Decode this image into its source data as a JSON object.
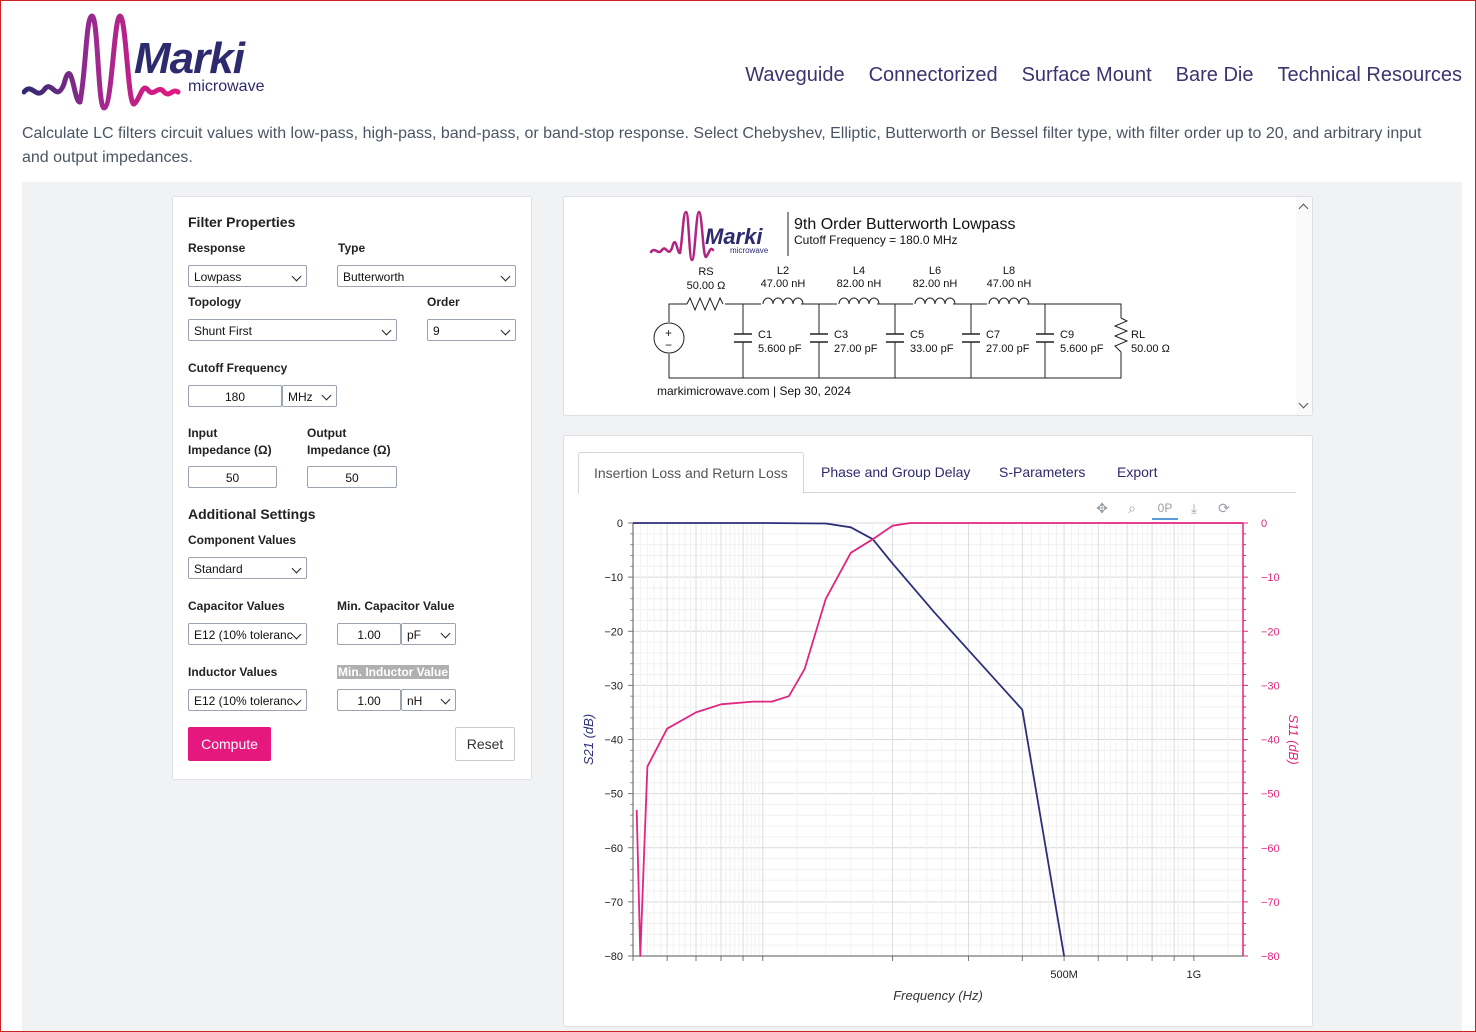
{
  "header": {
    "logo_text": "Marki",
    "logo_sub": "microwave",
    "nav": [
      "Waveguide",
      "Connectorized",
      "Surface Mount",
      "Bare Die",
      "Technical Resources"
    ]
  },
  "intro": "Calculate LC filters circuit values with low-pass, high-pass, band-pass, or band-stop response. Select Chebyshev, Elliptic, Butterworth or Bessel filter type, with filter order up to 20, and arbitrary input and output impedances.",
  "filter": {
    "section_title": "Filter Properties",
    "response_label": "Response",
    "response_value": "Lowpass",
    "type_label": "Type",
    "type_value": "Butterworth",
    "topology_label": "Topology",
    "topology_value": "Shunt First",
    "order_label": "Order",
    "order_value": "9",
    "cutoff_label": "Cutoff Frequency",
    "cutoff_value": "180",
    "cutoff_unit": "MHz",
    "input_label_1": "Input",
    "input_label_2": "Impedance (Ω)",
    "input_value": "50",
    "output_label_1": "Output",
    "output_label_2": "Impedance (Ω)",
    "output_value": "50"
  },
  "additional": {
    "section_title": "Additional Settings",
    "component_label": "Component Values",
    "component_value": "Standard",
    "cap_label": "Capacitor Values",
    "cap_value": "E12 (10% toleranc",
    "min_cap_label": "Min. Capacitor Value",
    "min_cap_value": "1.00",
    "min_cap_unit": "pF",
    "ind_label": "Inductor Values",
    "ind_value": "E12 (10% toleranc",
    "min_ind_label": "Min. Inductor Value",
    "min_ind_value": "1.00",
    "min_ind_unit": "nH",
    "compute": "Compute",
    "reset": "Reset"
  },
  "schematic": {
    "logo_text": "Marki",
    "logo_sub": "microwave",
    "title": "9th Order Butterworth Lowpass",
    "subtitle": "Cutoff Frequency = 180.0 MHz",
    "footer": "markimicrowave.com | Sep 30, 2024",
    "rs_name": "RS",
    "rs_value": "50.00 Ω",
    "rl_name": "RL",
    "rl_value": "50.00 Ω",
    "source_plus": "+",
    "source_minus": "−",
    "inductors": [
      {
        "name": "L2",
        "value": "47.00 nH"
      },
      {
        "name": "L4",
        "value": "82.00 nH"
      },
      {
        "name": "L6",
        "value": "82.00 nH"
      },
      {
        "name": "L8",
        "value": "47.00 nH"
      }
    ],
    "capacitors": [
      {
        "name": "C1",
        "value": "5.600 pF"
      },
      {
        "name": "C3",
        "value": "27.00 pF"
      },
      {
        "name": "C5",
        "value": "33.00 pF"
      },
      {
        "name": "C7",
        "value": "27.00 pF"
      },
      {
        "name": "C9",
        "value": "5.600 pF"
      }
    ]
  },
  "tabs": [
    "Insertion Loss and Return Loss",
    "Phase and Group Delay",
    "S-Parameters",
    "Export"
  ],
  "toolbar": [
    "pan-icon",
    "zoom-icon",
    "hover-icon",
    "download-icon",
    "reset-icon"
  ],
  "toolbar_glyphs": [
    "✥",
    "⌕",
    "0P",
    "⤓",
    "⟳"
  ],
  "chart_data": {
    "type": "line",
    "xlabel": "Frequency (Hz)",
    "ylabel": "S21 (dB)",
    "y2label": "S11 (dB)",
    "x_scale": "log",
    "xlim": [
      50000000,
      1300000000
    ],
    "ylim": [
      -80,
      0
    ],
    "y_ticks": [
      0,
      -10,
      -20,
      -30,
      -40,
      -50,
      -60,
      -70,
      -80
    ],
    "y_tick_labels": [
      "0",
      "−10",
      "−20",
      "−30",
      "−40",
      "−50",
      "−60",
      "−70",
      "−80"
    ],
    "x_ticks": [
      500000000,
      1000000000
    ],
    "x_tick_labels": [
      "500M",
      "1G"
    ],
    "grid": true,
    "colors": {
      "S21": "#2d2f7a",
      "S11": "#e0277f"
    },
    "series": [
      {
        "axis": "left",
        "x": [
          50000000,
          100000000,
          140000000,
          160000000,
          180000000,
          200000000,
          250000000,
          300000000,
          400000000,
          500000000
        ],
        "values": [
          0,
          0,
          -0.1,
          -0.8,
          -3,
          -7.5,
          -16.5,
          -23.5,
          -34.5,
          -80
        ]
      },
      {
        "axis": "right",
        "x": [
          51000000,
          52000000,
          53000000,
          54000000,
          60000000,
          70000000,
          80000000,
          95000000,
          105000000,
          115000000,
          125000000,
          140000000,
          160000000,
          180000000,
          200000000,
          220000000,
          300000000,
          1300000000
        ],
        "values": [
          -53,
          -80,
          -62,
          -45,
          -38,
          -35,
          -33.5,
          -33,
          -33,
          -32,
          -27,
          -14,
          -5.5,
          -3,
          -0.5,
          0,
          0,
          0
        ]
      }
    ]
  }
}
